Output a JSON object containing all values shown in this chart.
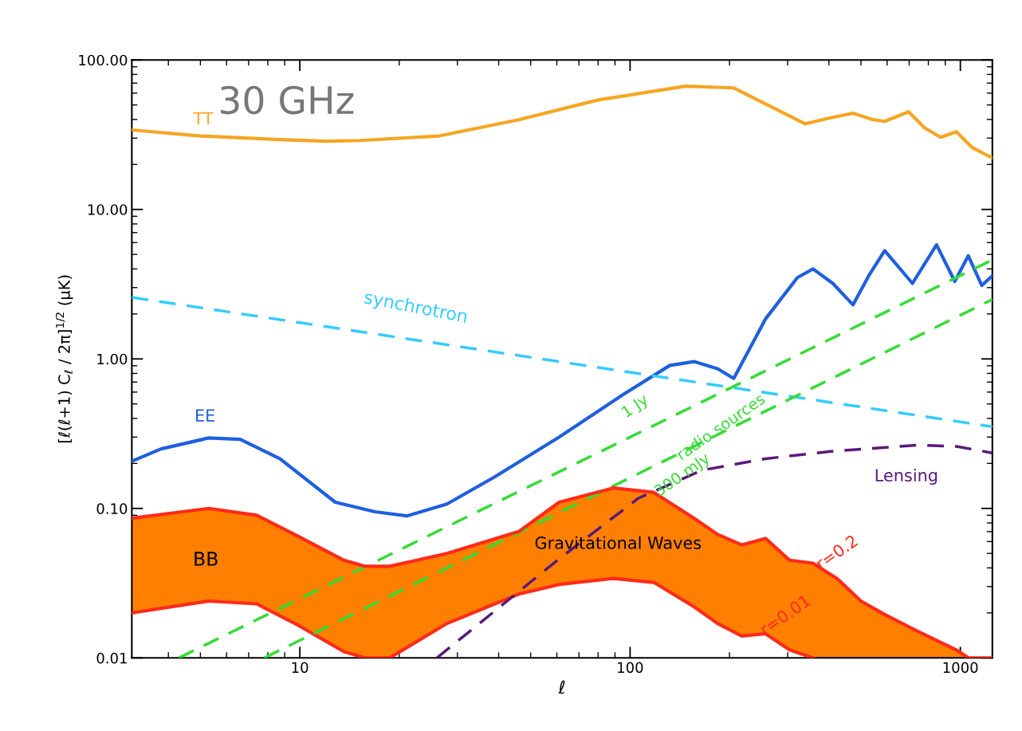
{
  "chart_data": {
    "type": "line",
    "title": "30 GHz",
    "xlabel": "ℓ",
    "ylabel": "[ℓ(ℓ+1) C$_{ℓ}$ / 2π]$^{1/2}$ (μK)",
    "log": "xy",
    "xlim": [
      3.1,
      1250
    ],
    "ylim": [
      0.01,
      100
    ],
    "xticks": [
      10,
      100,
      1000
    ],
    "yticks": [
      {
        "value": 0.01,
        "label": "0.01"
      },
      {
        "value": 0.1,
        "label": "0.10"
      },
      {
        "value": 1,
        "label": "1.00"
      },
      {
        "value": 10,
        "label": "10.00"
      },
      {
        "value": 100,
        "label": "100.00"
      }
    ],
    "grid": false,
    "legend": false,
    "series": [
      {
        "type": "line",
        "color": "#ff2a1a",
        "line_style": "solid",
        "x": [
          3.1,
          5.3,
          7.4,
          9.9,
          13.6,
          15.8,
          18.7,
          27.9,
          46,
          61,
          89,
          118,
          156,
          184,
          218,
          257,
          304,
          358
        ],
        "values": [
          0.02,
          0.024,
          0.023,
          0.0165,
          0.011,
          0.01,
          0.01,
          0.017,
          0.0267,
          0.031,
          0.034,
          0.032,
          0.022,
          0.017,
          0.014,
          0.0145,
          0.0113,
          0.01
        ]
      },
      {
        "type": "line",
        "color": "#f5a623",
        "line_style": "solid",
        "x": [
          3.1,
          5.0,
          8.7,
          12,
          15.2,
          26.4,
          46,
          80,
          147,
          206,
          271,
          339,
          400,
          473,
          540,
          590,
          697,
          779,
          871,
          973,
          1087,
          1250
        ],
        "values": [
          34,
          31,
          29.3,
          28.6,
          28.9,
          31,
          39.8,
          54,
          66.7,
          65,
          47.9,
          37.4,
          40.8,
          44,
          40,
          38.8,
          45,
          35.2,
          30.4,
          33.1,
          25.9,
          22.1
        ]
      },
      {
        "type": "line",
        "color": "#1f5fe0",
        "line_style": "solid",
        "x": [
          3.1,
          3.8,
          5.3,
          6.6,
          8.7,
          12.8,
          16.9,
          21.1,
          27.9,
          39,
          61,
          95,
          132,
          156,
          184,
          206,
          257,
          321,
          358,
          411,
          473,
          528,
          590,
          716,
          847,
          962,
          1057,
          1161,
          1250
        ],
        "values": [
          0.207,
          0.25,
          0.296,
          0.29,
          0.215,
          0.11,
          0.095,
          0.089,
          0.107,
          0.163,
          0.3,
          0.575,
          0.905,
          0.96,
          0.86,
          0.74,
          1.85,
          3.5,
          4.0,
          3.2,
          2.3,
          3.6,
          5.3,
          3.2,
          5.8,
          3.3,
          4.9,
          3.1,
          3.6
        ]
      },
      {
        "type": "line",
        "color": "#33ccff",
        "line_style": "dashed",
        "x": [
          3.1,
          1250
        ],
        "values": [
          2.58,
          0.352
        ]
      },
      {
        "type": "line",
        "color": "#33dd33",
        "line_style": "dashed",
        "x": [
          4.3,
          1250
        ],
        "values": [
          0.01,
          4.6
        ]
      },
      {
        "type": "line",
        "color": "#33dd33",
        "line_style": "dashed",
        "x": [
          7.8,
          1250
        ],
        "values": [
          0.01,
          2.5
        ]
      },
      {
        "type": "line",
        "color": "#5a1a7a",
        "line_style": "dashed",
        "x": [
          26,
          61,
          106,
          165,
          257,
          400,
          736,
          973,
          1250
        ],
        "values": [
          0.01,
          0.046,
          0.117,
          0.18,
          0.215,
          0.24,
          0.265,
          0.26,
          0.235
        ]
      },
      {
        "type": "line",
        "color": "#ff2a1a",
        "line_style": "solid",
        "x": [
          3.1,
          5.3,
          7.4,
          9.9,
          13.6,
          15.8,
          18.7,
          27.9,
          46,
          61,
          89,
          118,
          156,
          184,
          218,
          257,
          304,
          358,
          423,
          500,
          590,
          736,
          973,
          1057,
          1250
        ],
        "lower": [
          0.02,
          0.024,
          0.023,
          0.0165,
          0.011,
          0.01,
          0.01,
          0.017,
          0.0267,
          0.031,
          0.034,
          0.032,
          0.022,
          0.017,
          0.014,
          0.0145,
          0.0113,
          0.01,
          0.01,
          0.01,
          0.01,
          0.01,
          0.01,
          0.01,
          0.01
        ],
        "upper": [
          0.086,
          0.1,
          0.09,
          0.065,
          0.045,
          0.041,
          0.041,
          0.05,
          0.07,
          0.11,
          0.137,
          0.128,
          0.086,
          0.067,
          0.057,
          0.063,
          0.045,
          0.043,
          0.034,
          0.024,
          0.0195,
          0.0152,
          0.0113,
          0.01,
          0.01
        ],
        "values": [
          0.086,
          0.1,
          0.09,
          0.065,
          0.045,
          0.041,
          0.041,
          0.05,
          0.07,
          0.11,
          0.137,
          0.128,
          0.086,
          0.067,
          0.057,
          0.063,
          0.045,
          0.043,
          0.034,
          0.024,
          0.0195,
          0.0152,
          0.0113,
          0.01,
          0.01
        ]
      }
    ],
    "annotations": [
      "TT",
      "EE",
      "synchrotron",
      "1 Jy",
      "radio sources",
      "300 mJy",
      "Lensing",
      "BB",
      "Gravitational Waves",
      "r=0.2",
      "r=0.01"
    ]
  }
}
